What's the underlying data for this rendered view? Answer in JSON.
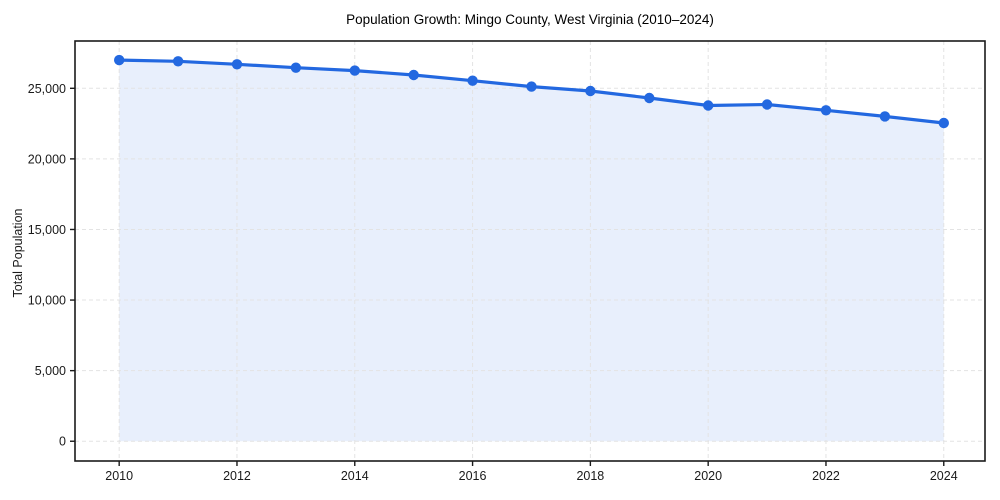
{
  "figure": {
    "background": "#ffffff"
  },
  "chart_data": {
    "type": "line",
    "title": "Population Growth: Mingo County, West Virginia (2010–2024)",
    "xlabel": "",
    "ylabel": "Total Population",
    "x": [
      2010,
      2011,
      2012,
      2013,
      2014,
      2015,
      2016,
      2017,
      2018,
      2019,
      2020,
      2021,
      2022,
      2023,
      2024
    ],
    "series": [
      {
        "name": "Total Population",
        "values": [
          27000,
          26910,
          26700,
          26460,
          26250,
          25940,
          25540,
          25120,
          24810,
          24310,
          23780,
          23850,
          23440,
          23010,
          22540
        ]
      }
    ],
    "xticks": [
      2010,
      2012,
      2014,
      2016,
      2018,
      2020,
      2022,
      2024
    ],
    "xtick_labels": [
      "2010",
      "2012",
      "2014",
      "2016",
      "2018",
      "2020",
      "2022",
      "2024"
    ],
    "yticks": [
      0,
      5000,
      10000,
      15000,
      20000,
      25000
    ],
    "ytick_labels": [
      "0",
      "5,000",
      "10,000",
      "15,000",
      "20,000",
      "25,000"
    ],
    "xlim": [
      2009.25,
      2024.7
    ],
    "ylim": [
      -1400,
      28350
    ],
    "grid": true,
    "grid_style": "dashed",
    "legend": "none",
    "marker": "circle",
    "fill_to_zero": true,
    "style": {
      "line_color": "#2368e0",
      "marker_color": "#2368e0",
      "fill_color": "#e8effc",
      "grid_color": "#e3e3e3",
      "axis_color": "#1a1a1a",
      "tick_label_color": "#1a1a1a",
      "title_color": "#000000"
    }
  }
}
